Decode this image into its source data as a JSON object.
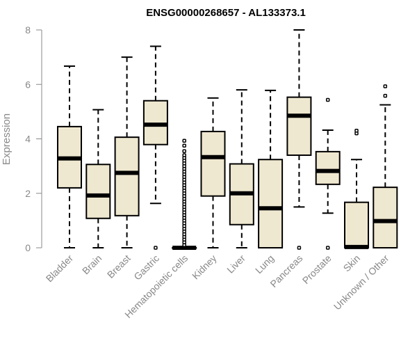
{
  "chart_data": {
    "type": "box",
    "title": "ENSG00000268657 - AL133373.1",
    "xlabel": "",
    "ylabel": "Expression",
    "ylim": [
      0,
      8
    ],
    "yticks": [
      0,
      2,
      4,
      6,
      8
    ],
    "grid": false,
    "legend": "none",
    "box_fill": "#efe8d0",
    "categories": [
      "Bladder",
      "Brain",
      "Breast",
      "Gastric",
      "Hematopoietic cells",
      "Kidney",
      "Liver",
      "Lung",
      "Pancreas",
      "Prostate",
      "Skin",
      "Unknown / Other"
    ],
    "boxes": [
      {
        "category": "Bladder",
        "whisker_low": 0.0,
        "q1": 2.2,
        "median": 3.28,
        "q3": 4.45,
        "whisker_high": 6.67,
        "outliers": []
      },
      {
        "category": "Brain",
        "whisker_low": 0.0,
        "q1": 1.08,
        "median": 1.92,
        "q3": 3.06,
        "whisker_high": 5.07,
        "outliers": []
      },
      {
        "category": "Breast",
        "whisker_low": 0.0,
        "q1": 1.18,
        "median": 2.75,
        "q3": 4.06,
        "whisker_high": 7.0,
        "outliers": []
      },
      {
        "category": "Gastric",
        "whisker_low": 1.63,
        "q1": 3.79,
        "median": 4.52,
        "q3": 5.4,
        "whisker_high": 7.4,
        "outliers": [
          0.0
        ]
      },
      {
        "category": "Hematopoietic cells",
        "whisker_low": 0.0,
        "q1": 0.0,
        "median": 0.0,
        "q3": 0.0,
        "whisker_high": 0.0,
        "outliers": [
          0.1,
          0.2,
          0.3,
          0.4,
          0.5,
          0.6,
          0.7,
          0.8,
          0.9,
          1.0,
          1.1,
          1.2,
          1.3,
          1.4,
          1.5,
          1.6,
          1.7,
          1.8,
          1.9,
          2.0,
          2.1,
          2.2,
          2.3,
          2.4,
          2.5,
          2.6,
          2.7,
          2.8,
          2.9,
          3.0,
          3.1,
          3.2,
          3.3,
          3.4,
          3.55,
          3.75,
          3.93
        ]
      },
      {
        "category": "Kidney",
        "whisker_low": 0.0,
        "q1": 1.9,
        "median": 3.33,
        "q3": 4.27,
        "whisker_high": 5.5,
        "outliers": []
      },
      {
        "category": "Liver",
        "whisker_low": 0.0,
        "q1": 0.85,
        "median": 2.0,
        "q3": 3.08,
        "whisker_high": 5.8,
        "outliers": []
      },
      {
        "category": "Lung",
        "whisker_low": 0.0,
        "q1": 0.0,
        "median": 1.45,
        "q3": 3.24,
        "whisker_high": 5.78,
        "outliers": []
      },
      {
        "category": "Pancreas",
        "whisker_low": 1.5,
        "q1": 3.4,
        "median": 4.85,
        "q3": 5.53,
        "whisker_high": 8.0,
        "outliers": [
          0.0
        ]
      },
      {
        "category": "Prostate",
        "whisker_low": 1.27,
        "q1": 2.33,
        "median": 2.82,
        "q3": 3.53,
        "whisker_high": 4.32,
        "outliers": [
          0.0,
          5.43
        ]
      },
      {
        "category": "Skin",
        "whisker_low": 0.0,
        "q1": 0.0,
        "median": 0.03,
        "q3": 1.67,
        "whisker_high": 3.24,
        "outliers": [
          4.2,
          4.3
        ]
      },
      {
        "category": "Unknown / Other",
        "whisker_low": 0.0,
        "q1": 0.0,
        "median": 0.98,
        "q3": 2.22,
        "whisker_high": 5.25,
        "outliers": [
          5.58,
          5.93
        ]
      }
    ]
  }
}
